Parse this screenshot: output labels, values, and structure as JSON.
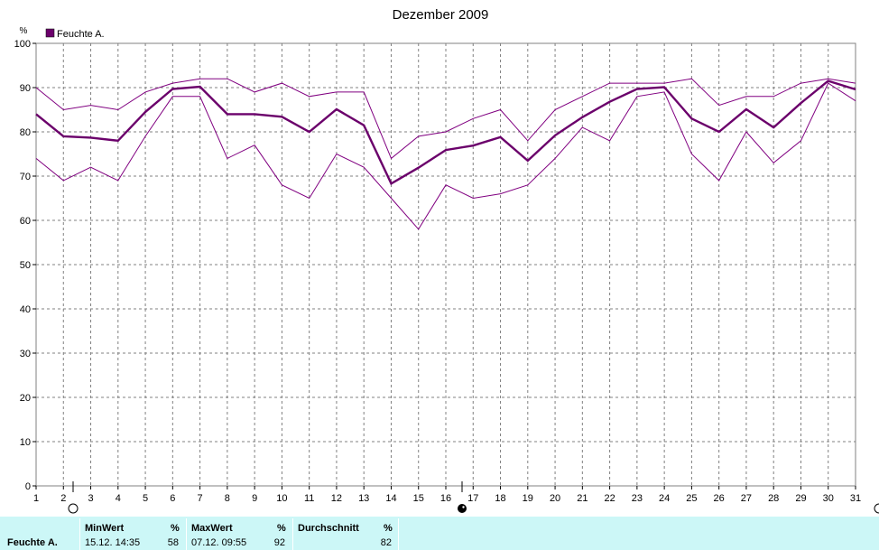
{
  "chart_data": {
    "type": "line",
    "title": "Dezember 2009",
    "ylabel": "%",
    "xlabel": "",
    "x": [
      1,
      2,
      3,
      4,
      5,
      6,
      7,
      8,
      9,
      10,
      11,
      12,
      13,
      14,
      15,
      16,
      17,
      18,
      19,
      20,
      21,
      22,
      23,
      24,
      25,
      26,
      27,
      28,
      29,
      30,
      31
    ],
    "ylim": [
      0,
      100
    ],
    "xlim": [
      1,
      31
    ],
    "yticks": [
      0,
      10,
      20,
      30,
      40,
      50,
      60,
      70,
      80,
      90,
      100
    ],
    "grid": true,
    "legend_position": "top-left",
    "series": [
      {
        "name": "Feuchte A.",
        "role": "average",
        "color": "#6b006b",
        "values": [
          84,
          79,
          78.7,
          78,
          84.5,
          89.7,
          90.2,
          84,
          84,
          83.4,
          80,
          85.1,
          81.5,
          68.3,
          71.9,
          75.9,
          76.9,
          78.8,
          73.5,
          79.2,
          83.3,
          86.8,
          89.7,
          90.1,
          83,
          80,
          85.1,
          81,
          86.5,
          91.5,
          89.6
        ]
      },
      {
        "name": "",
        "role": "max",
        "color": "#800080",
        "values": [
          90,
          85,
          86,
          85,
          89,
          91,
          92,
          92,
          89,
          91,
          88,
          89,
          89,
          74,
          79,
          80,
          83,
          85,
          78,
          85,
          88,
          91,
          91,
          91,
          92,
          86,
          88,
          88,
          91,
          92,
          91
        ]
      },
      {
        "name": "",
        "role": "min",
        "color": "#800080",
        "values": [
          74,
          69,
          72,
          69,
          79,
          88,
          88,
          74,
          77,
          68,
          65,
          75,
          72,
          65,
          58,
          68,
          65,
          66,
          68,
          74,
          81,
          78,
          88,
          89,
          75,
          69,
          80,
          73,
          78,
          91,
          87
        ]
      }
    ]
  },
  "stats": {
    "row_label": "Feuchte A.",
    "min_header": "MinWert",
    "min_unit": "%",
    "min_time": "15.12.  14:35",
    "min_value": "58",
    "max_header": "MaxWert",
    "max_unit": "%",
    "max_time": "07.12.  09:55",
    "max_value": "92",
    "avg_header": "Durchschnitt",
    "avg_unit": "%",
    "avg_value": "82"
  },
  "markers": {
    "open_circle_icon": "open-circle",
    "filled_circle_icon": "filled-circle",
    "colors": {
      "plot_border": "#808080",
      "grid": "#808080",
      "accent": "#6b006b"
    }
  }
}
